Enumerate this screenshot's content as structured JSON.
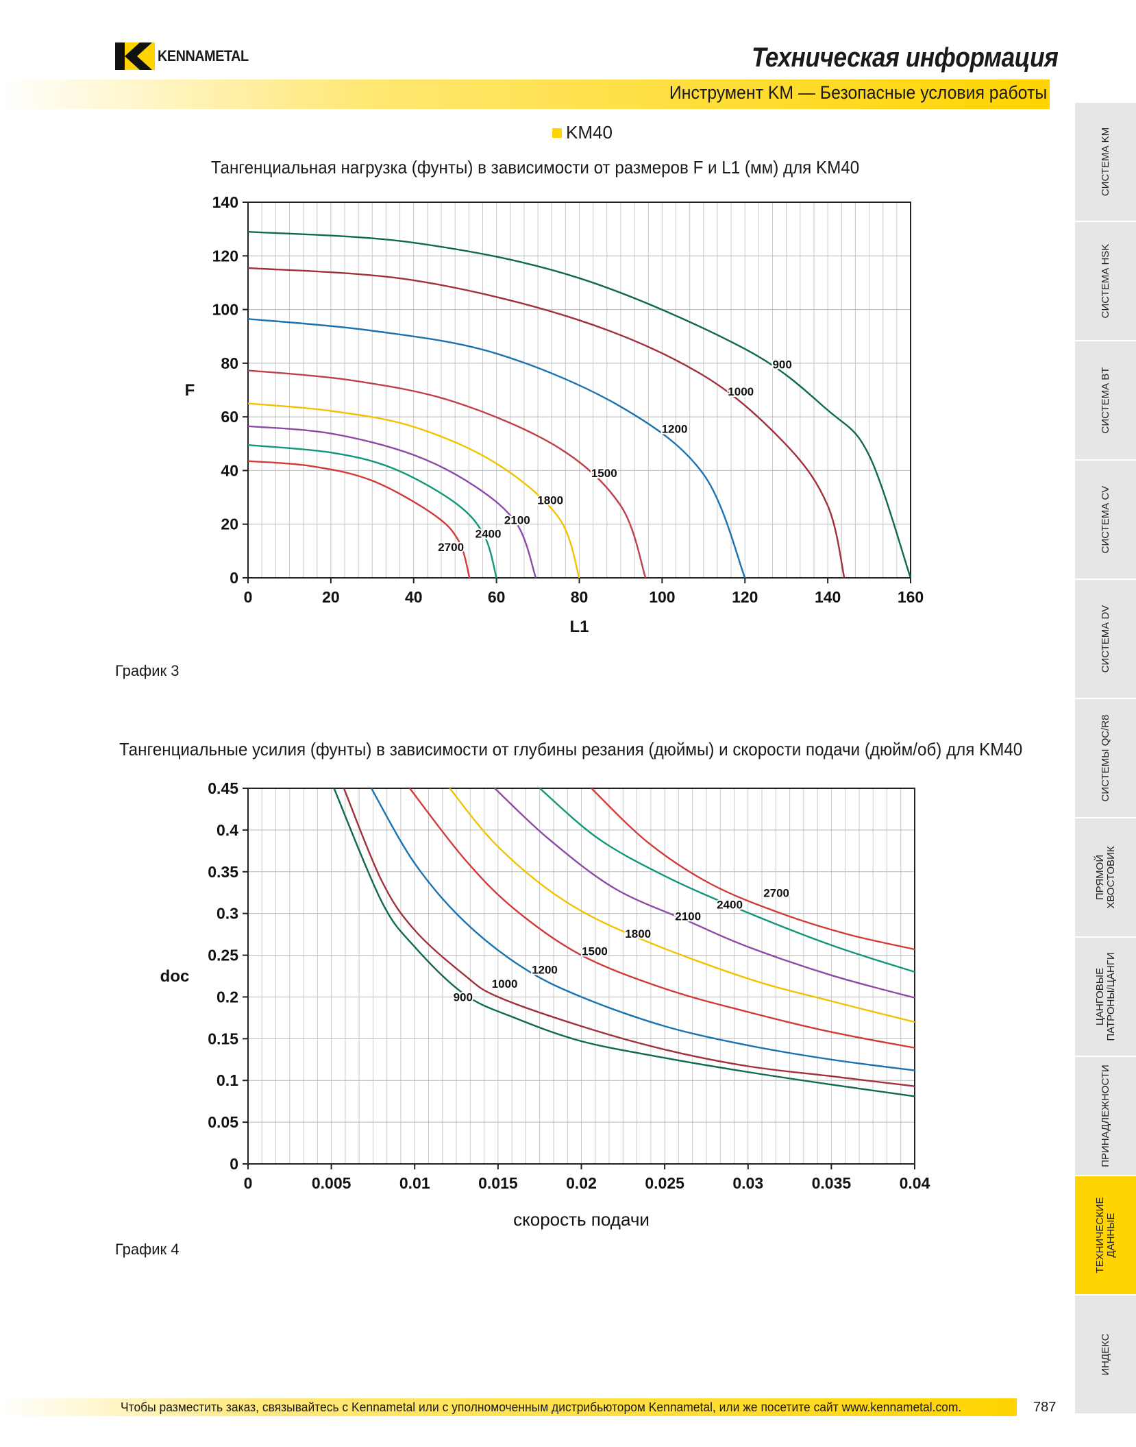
{
  "header": {
    "brand": "KENNAMETAL",
    "title": "Техническая информация",
    "subtitle": "Инструмент KM — Безопасные условия работы"
  },
  "legend": {
    "label": "KM40",
    "color": "#ffd400"
  },
  "sidebar": {
    "items": [
      {
        "label": "СИСТЕМА KM",
        "active": false
      },
      {
        "label": "СИСТЕМА HSK",
        "active": false
      },
      {
        "label": "СИСТЕМА BT",
        "active": false
      },
      {
        "label": "СИСТЕМА CV",
        "active": false
      },
      {
        "label": "СИСТЕМА DV",
        "active": false
      },
      {
        "label": "СИСТЕМЫ QC/R8",
        "active": false
      },
      {
        "label": "ПРЯМОЙ ХВОСТОВИК",
        "active": false
      },
      {
        "label": "ЦАНГОВЫЕ ПАТРОНЫ/ЦАНГИ",
        "active": false
      },
      {
        "label": "ПРИНАДЛЕЖНОСТИ",
        "active": false
      },
      {
        "label": "ТЕХНИЧЕСКИЕ ДАННЫЕ",
        "active": true
      },
      {
        "label": "ИНДЕКС",
        "active": false
      }
    ]
  },
  "footer": {
    "text": "Чтобы разместить заказ, связывайтесь с Kennametal или с уполномоченным дистрибьютором Kennametal, или же посетите сайт www.kennametal.com.",
    "page": "787"
  },
  "chart_data": [
    {
      "type": "line",
      "title": "Тангенциальная нагрузка (фунты) в зависимости от размеров F и L1 (мм) для KM40",
      "caption": "График 3",
      "xlabel": "L1",
      "ylabel": "F",
      "xlim": [
        0,
        160
      ],
      "ylim": [
        0,
        140
      ],
      "xticks": [
        0,
        20,
        40,
        60,
        80,
        100,
        120,
        140,
        160
      ],
      "yticks": [
        0,
        20,
        40,
        60,
        80,
        100,
        120,
        140
      ],
      "grid": true,
      "series": [
        {
          "name": "900",
          "color": "#0e6b4a",
          "x": [
            0,
            40,
            80,
            120,
            140,
            150,
            160
          ],
          "y": [
            129,
            124.9,
            111.7,
            85.3,
            62.5,
            45.6,
            0
          ]
        },
        {
          "name": "1000",
          "color": "#a0303a",
          "x": [
            0,
            40,
            80,
            110,
            130,
            140,
            144
          ],
          "y": [
            115.5,
            110.9,
            96,
            75.4,
            49.5,
            26.9,
            0
          ]
        },
        {
          "name": "1200",
          "color": "#1a73b0",
          "x": [
            0,
            30,
            60,
            90,
            110,
            120
          ],
          "y": [
            96.5,
            92.1,
            83.6,
            63.8,
            38.6,
            0
          ]
        },
        {
          "name": "1500",
          "color": "#c0404a",
          "x": [
            0,
            25,
            50,
            75,
            90,
            96
          ],
          "y": [
            77.3,
            73.6,
            65.5,
            48.5,
            26.9,
            0
          ]
        },
        {
          "name": "1800",
          "color": "#f2c200",
          "x": [
            0,
            20,
            40,
            60,
            75,
            80
          ],
          "y": [
            65,
            62.2,
            56.3,
            42.6,
            22.5,
            0
          ]
        },
        {
          "name": "2100",
          "color": "#8b4aa6",
          "x": [
            0,
            20,
            40,
            55,
            65,
            69.5
          ],
          "y": [
            56.5,
            53.8,
            45.8,
            33.9,
            19.9,
            0
          ]
        },
        {
          "name": "2400",
          "color": "#11967a",
          "x": [
            0,
            20,
            35,
            50,
            57,
            60
          ],
          "y": [
            49.5,
            46.7,
            40.8,
            28,
            15.9,
            0
          ]
        },
        {
          "name": "2700",
          "color": "#d23a3a",
          "x": [
            0,
            15,
            30,
            45,
            51,
            53.5
          ],
          "y": [
            43.5,
            41.7,
            36.2,
            23.4,
            13.4,
            0
          ]
        }
      ]
    },
    {
      "type": "line",
      "title": "Тангенциальные усилия (фунты) в зависимости от глубины резания (дюймы) и скорости подачи (дюйм/об) для KM40",
      "caption": "График 4",
      "xlabel": "скорость подачи",
      "ylabel": "doc",
      "xlim": [
        0,
        0.04
      ],
      "ylim": [
        0,
        0.45
      ],
      "xticks": [
        0,
        0.005,
        0.01,
        0.015,
        0.02,
        0.025,
        0.03,
        0.035,
        0.04
      ],
      "xtick_labels": [
        "0",
        "0.005",
        "0.01",
        "0.015",
        "0.02",
        "0.025",
        "0.03",
        "0.035",
        "0.04"
      ],
      "yticks": [
        0,
        0.05,
        0.1,
        0.15,
        0.2,
        0.25,
        0.3,
        0.35,
        0.4,
        0.45
      ],
      "ytick_labels": [
        "0",
        "0.05",
        "0.1",
        "0.15",
        "0.2",
        "0.25",
        "0.3",
        "0.35",
        "0.4",
        "0.45"
      ],
      "grid": true,
      "series": [
        {
          "name": "900",
          "color": "#0e6b4a",
          "x": [
            0.00516,
            0.008,
            0.01,
            0.013,
            0.016,
            0.02,
            0.025,
            0.03,
            0.035,
            0.04
          ],
          "y": [
            0.45,
            0.315,
            0.26,
            0.203,
            0.175,
            0.147,
            0.127,
            0.11,
            0.095,
            0.081
          ]
        },
        {
          "name": "1000",
          "color": "#a0303a",
          "x": [
            0.00575,
            0.008,
            0.01,
            0.013,
            0.015,
            0.02,
            0.025,
            0.03,
            0.035,
            0.04
          ],
          "y": [
            0.45,
            0.34,
            0.28,
            0.226,
            0.2,
            0.165,
            0.137,
            0.117,
            0.105,
            0.093
          ]
        },
        {
          "name": "1200",
          "color": "#1a73b0",
          "x": [
            0.0074,
            0.01,
            0.013,
            0.0165,
            0.02,
            0.025,
            0.03,
            0.035,
            0.04
          ],
          "y": [
            0.45,
            0.36,
            0.29,
            0.235,
            0.2,
            0.165,
            0.142,
            0.125,
            0.112
          ]
        },
        {
          "name": "1500",
          "color": "#d23a3a",
          "x": [
            0.0097,
            0.013,
            0.016,
            0.02,
            0.025,
            0.03,
            0.035,
            0.04
          ],
          "y": [
            0.45,
            0.365,
            0.305,
            0.25,
            0.21,
            0.182,
            0.158,
            0.139
          ]
        },
        {
          "name": "1800",
          "color": "#f2c200",
          "x": [
            0.0121,
            0.015,
            0.019,
            0.0235,
            0.03,
            0.035,
            0.04
          ],
          "y": [
            0.45,
            0.38,
            0.315,
            0.27,
            0.222,
            0.195,
            0.17
          ]
        },
        {
          "name": "2100",
          "color": "#8b4aa6",
          "x": [
            0.0148,
            0.018,
            0.022,
            0.0265,
            0.03,
            0.035,
            0.04
          ],
          "y": [
            0.45,
            0.39,
            0.33,
            0.29,
            0.26,
            0.226,
            0.199
          ]
        },
        {
          "name": "2400",
          "color": "#11967a",
          "x": [
            0.0175,
            0.021,
            0.025,
            0.0295,
            0.035,
            0.04
          ],
          "y": [
            0.45,
            0.39,
            0.345,
            0.305,
            0.262,
            0.23
          ]
        },
        {
          "name": "2700",
          "color": "#d23a3a",
          "x": [
            0.0206,
            0.024,
            0.0278,
            0.032,
            0.036,
            0.04
          ],
          "y": [
            0.45,
            0.385,
            0.335,
            0.3,
            0.275,
            0.257
          ]
        }
      ]
    }
  ]
}
